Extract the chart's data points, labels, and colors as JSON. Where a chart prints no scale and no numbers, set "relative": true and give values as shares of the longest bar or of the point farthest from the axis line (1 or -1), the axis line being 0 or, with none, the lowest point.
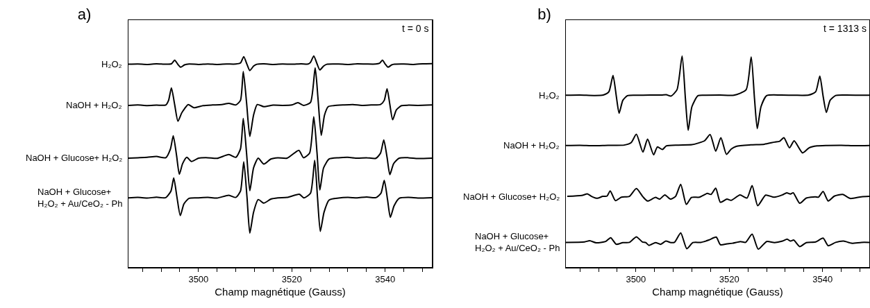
{
  "chart_data": [
    {
      "type": "line",
      "title": "a)",
      "xlabel": "Champ magnétique (Gauss)",
      "annotations": [
        "t = 0 s"
      ],
      "relative": true,
      "xlim": [
        3485,
        3550
      ],
      "xticks": [
        {
          "value": 3488,
          "label": null
        },
        {
          "value": 3492,
          "label": null
        },
        {
          "value": 3496,
          "label": null
        },
        3500,
        {
          "value": 3504,
          "label": null
        },
        {
          "value": 3508,
          "label": null
        },
        {
          "value": 3512,
          "label": null
        },
        {
          "value": 3516,
          "label": null
        },
        3520,
        {
          "value": 3524,
          "label": null
        },
        {
          "value": 3528,
          "label": null
        },
        {
          "value": 3532,
          "label": null
        },
        {
          "value": 3536,
          "label": null
        },
        3540,
        {
          "value": 3544,
          "label": null
        },
        {
          "value": 3548,
          "label": null
        }
      ],
      "marker": "none",
      "line_style": "solid",
      "grid": false,
      "legend": false,
      "series": [
        {
          "name": "H₂O₂",
          "color": "#000000",
          "x": [
            3485,
            3487,
            3489,
            3491,
            3493,
            3494.2,
            3494.9,
            3495.6,
            3496.2,
            3497,
            3498,
            3500,
            3502,
            3504,
            3506,
            3508,
            3509,
            3509.7,
            3510.4,
            3511.0,
            3511.8,
            3512.5,
            3514,
            3516,
            3518,
            3520,
            3522,
            3523.5,
            3524,
            3524.7,
            3525.4,
            3526.0,
            3526.8,
            3527.5,
            3530,
            3532,
            3534,
            3536,
            3538,
            3538.8,
            3539.4,
            3540.0,
            3540.6,
            3541.4,
            3542,
            3544,
            3546,
            3548,
            3550
          ],
          "values": [
            0.961,
            0.962,
            0.96,
            0.963,
            0.961,
            0.963,
            0.98,
            0.96,
            0.947,
            0.958,
            0.962,
            0.96,
            0.962,
            0.96,
            0.962,
            0.962,
            0.967,
            0.997,
            0.96,
            0.931,
            0.952,
            0.961,
            0.963,
            0.96,
            0.962,
            0.961,
            0.963,
            0.962,
            0.97,
            1.0,
            0.963,
            0.934,
            0.952,
            0.961,
            0.962,
            0.96,
            0.963,
            0.962,
            0.962,
            0.966,
            0.98,
            0.962,
            0.947,
            0.958,
            0.961,
            0.962,
            0.96,
            0.963,
            0.964
          ]
        },
        {
          "name": "NaOH + H₂O₂",
          "color": "#000000",
          "x": [
            3485,
            3487,
            3489,
            3491,
            3493,
            3493.6,
            3494.2,
            3494.9,
            3495.6,
            3496.4,
            3497,
            3497.8,
            3499,
            3501,
            3503,
            3505,
            3506.5,
            3508,
            3509,
            3509.6,
            3510.3,
            3511.0,
            3511.8,
            3512.6,
            3514,
            3516,
            3518,
            3520,
            3521.3,
            3522.5,
            3524,
            3525.0,
            3525.6,
            3526.3,
            3527,
            3527.8,
            3529,
            3531,
            3533,
            3535,
            3537,
            3539,
            3539.8,
            3540.4,
            3541.0,
            3541.6,
            3542.4,
            3543.5,
            3545,
            3547,
            3550
          ],
          "values": [
            0.766,
            0.768,
            0.765,
            0.767,
            0.768,
            0.79,
            0.849,
            0.77,
            0.691,
            0.73,
            0.75,
            0.77,
            0.755,
            0.765,
            0.768,
            0.77,
            0.776,
            0.768,
            0.79,
            0.927,
            0.78,
            0.619,
            0.72,
            0.77,
            0.76,
            0.767,
            0.766,
            0.768,
            0.779,
            0.766,
            0.78,
            0.944,
            0.8,
            0.624,
            0.72,
            0.76,
            0.765,
            0.768,
            0.77,
            0.766,
            0.768,
            0.77,
            0.79,
            0.845,
            0.77,
            0.698,
            0.745,
            0.765,
            0.767,
            0.766,
            0.768
          ]
        },
        {
          "name": "NaOH + Glucose+ H₂O₂",
          "color": "#000000",
          "x": [
            3485,
            3487,
            3489,
            3491,
            3493,
            3494.0,
            3494.6,
            3495.3,
            3495.9,
            3496.6,
            3497.5,
            3498.5,
            3500,
            3502,
            3504,
            3506.5,
            3508,
            3509,
            3509.6,
            3510.3,
            3511.0,
            3511.8,
            3512.8,
            3514,
            3515.5,
            3517,
            3519,
            3521.5,
            3522.5,
            3523.8,
            3524.7,
            3525.4,
            3526.0,
            3526.8,
            3528,
            3530,
            3532,
            3534,
            3536,
            3538,
            3539.0,
            3539.7,
            3540.4,
            3541.0,
            3541.8,
            3543,
            3545,
            3547,
            3550
          ],
          "values": [
            0.516,
            0.518,
            0.52,
            0.524,
            0.518,
            0.56,
            0.622,
            0.53,
            0.44,
            0.49,
            0.52,
            0.5,
            0.516,
            0.518,
            0.515,
            0.533,
            0.52,
            0.56,
            0.704,
            0.54,
            0.362,
            0.47,
            0.516,
            0.488,
            0.512,
            0.518,
            0.516,
            0.553,
            0.518,
            0.54,
            0.712,
            0.54,
            0.365,
            0.47,
            0.512,
            0.518,
            0.52,
            0.516,
            0.518,
            0.515,
            0.54,
            0.602,
            0.52,
            0.438,
            0.49,
            0.516,
            0.518,
            0.514,
            0.516
          ]
        },
        {
          "name": "NaOH + Glucose+\nH₂O₂ + Au/CeO₂ - Ph",
          "color": "#000000",
          "x": [
            3485,
            3487,
            3489,
            3491,
            3493,
            3494.1,
            3494.7,
            3495.4,
            3496.1,
            3496.9,
            3498,
            3500,
            3502,
            3504,
            3506.5,
            3508,
            3509,
            3509.7,
            3510.4,
            3511.0,
            3511.8,
            3512.8,
            3514,
            3515.5,
            3517,
            3519,
            3521.6,
            3522.6,
            3524,
            3524.9,
            3525.5,
            3526.1,
            3526.9,
            3528,
            3530,
            3532,
            3534,
            3536,
            3538,
            3539.1,
            3539.8,
            3540.5,
            3541.1,
            3541.9,
            3543,
            3545,
            3547,
            3550
          ],
          "values": [
            0.328,
            0.33,
            0.327,
            0.331,
            0.329,
            0.36,
            0.422,
            0.33,
            0.244,
            0.3,
            0.326,
            0.328,
            0.33,
            0.327,
            0.34,
            0.33,
            0.36,
            0.499,
            0.33,
            0.161,
            0.26,
            0.32,
            0.303,
            0.322,
            0.328,
            0.33,
            0.345,
            0.328,
            0.35,
            0.506,
            0.33,
            0.169,
            0.26,
            0.318,
            0.327,
            0.33,
            0.328,
            0.332,
            0.329,
            0.35,
            0.411,
            0.32,
            0.236,
            0.29,
            0.326,
            0.33,
            0.327,
            0.329
          ]
        }
      ]
    },
    {
      "type": "line",
      "title": "b)",
      "xlabel": "Champ magnétique (Gauss)",
      "annotations": [
        "t = 1313 s"
      ],
      "relative": true,
      "xlim": [
        3485,
        3550
      ],
      "xticks": [
        {
          "value": 3488,
          "label": null
        },
        {
          "value": 3492,
          "label": null
        },
        {
          "value": 3496,
          "label": null
        },
        3500,
        {
          "value": 3504,
          "label": null
        },
        {
          "value": 3508,
          "label": null
        },
        {
          "value": 3512,
          "label": null
        },
        {
          "value": 3516,
          "label": null
        },
        3520,
        {
          "value": 3524,
          "label": null
        },
        {
          "value": 3528,
          "label": null
        },
        {
          "value": 3532,
          "label": null
        },
        {
          "value": 3536,
          "label": null
        },
        3540,
        {
          "value": 3544,
          "label": null
        },
        {
          "value": 3548,
          "label": null
        }
      ],
      "marker": "none",
      "line_style": "solid",
      "grid": false,
      "legend": false,
      "series": [
        {
          "name": "H₂O₂",
          "color": "#000000",
          "x": [
            3485,
            3488,
            3491,
            3493,
            3494.2,
            3495.1,
            3495.8,
            3496.4,
            3497.2,
            3498.2,
            3500,
            3503,
            3505.5,
            3506.5,
            3507.5,
            3508.8,
            3509.9,
            3510.6,
            3511.2,
            3512.0,
            3513.3,
            3515,
            3518,
            3521,
            3523.6,
            3524.7,
            3525.4,
            3526.0,
            3526.8,
            3528,
            3531,
            3534,
            3537,
            3538.5,
            3539.4,
            3540.1,
            3540.8,
            3541.6,
            3542.8,
            3545,
            3548,
            3550
          ],
          "values": [
            0.814,
            0.815,
            0.813,
            0.815,
            0.83,
            0.908,
            0.81,
            0.729,
            0.79,
            0.812,
            0.814,
            0.815,
            0.815,
            0.817,
            0.81,
            0.84,
            1.0,
            0.8,
            0.648,
            0.76,
            0.812,
            0.814,
            0.815,
            0.814,
            0.84,
            0.996,
            0.8,
            0.656,
            0.76,
            0.812,
            0.815,
            0.814,
            0.815,
            0.83,
            0.905,
            0.81,
            0.733,
            0.79,
            0.813,
            0.815,
            0.814,
            0.814
          ]
        },
        {
          "name": "NaOH + H₂O₂",
          "color": "#000000",
          "x": [
            3485,
            3488,
            3491,
            3494,
            3497.5,
            3499,
            3500.1,
            3501.5,
            3502.5,
            3503.8,
            3504.6,
            3505.7,
            3506.5,
            3509,
            3512,
            3513.3,
            3514.7,
            3515.9,
            3517.1,
            3518.2,
            3519.4,
            3520.4,
            3521.5,
            3524.6,
            3527.5,
            3529.7,
            3530.8,
            3531.7,
            3532.9,
            3533.9,
            3535.7,
            3537.1,
            3538.8,
            3541,
            3544,
            3547,
            3550
          ],
          "values": [
            0.576,
            0.577,
            0.575,
            0.577,
            0.578,
            0.59,
            0.629,
            0.545,
            0.606,
            0.532,
            0.569,
            0.557,
            0.574,
            0.578,
            0.58,
            0.587,
            0.598,
            0.628,
            0.549,
            0.613,
            0.534,
            0.559,
            0.572,
            0.579,
            0.582,
            0.592,
            0.596,
            0.613,
            0.565,
            0.598,
            0.541,
            0.565,
            0.574,
            0.576,
            0.577,
            0.575,
            0.576
          ]
        },
        {
          "name": "NaOH + Glucose+ H₂O₂",
          "color": "#000000",
          "x": [
            3485.3,
            3488.4,
            3489.6,
            3490.5,
            3491.7,
            3492.9,
            3493.8,
            3494.5,
            3495.6,
            3496.9,
            3498.6,
            3500.1,
            3501.5,
            3502.5,
            3504.2,
            3505.1,
            3506.2,
            3507.4,
            3508.5,
            3509.6,
            3510.8,
            3511.9,
            3513.6,
            3515.3,
            3516.1,
            3517.1,
            3518.1,
            3519.5,
            3520.4,
            3522.3,
            3523.8,
            3524.9,
            3526.1,
            3527.8,
            3529.6,
            3531.4,
            3532.3,
            3533.1,
            3533.7,
            3535.1,
            3536.5,
            3538.4,
            3539.1,
            3540.1,
            3541.2,
            3542.5,
            3544.3,
            3545.9,
            3548.3,
            3550
          ],
          "values": [
            0.335,
            0.339,
            0.347,
            0.335,
            0.326,
            0.335,
            0.336,
            0.361,
            0.315,
            0.331,
            0.335,
            0.372,
            0.333,
            0.313,
            0.33,
            0.322,
            0.342,
            0.322,
            0.335,
            0.392,
            0.297,
            0.33,
            0.331,
            0.349,
            0.344,
            0.374,
            0.307,
            0.322,
            0.316,
            0.342,
            0.327,
            0.386,
            0.291,
            0.341,
            0.331,
            0.342,
            0.352,
            0.346,
            0.352,
            0.302,
            0.327,
            0.333,
            0.331,
            0.358,
            0.313,
            0.336,
            0.344,
            0.325,
            0.333,
            0.335
          ]
        },
        {
          "name": "NaOH + Glucose+\nH₂O₂ + Au/CeO₂ - Ph",
          "color": "#000000",
          "x": [
            3485,
            3489,
            3490.1,
            3491.5,
            3493.5,
            3494.6,
            3495.8,
            3497.2,
            3498.6,
            3500.1,
            3501.4,
            3502.1,
            3502.8,
            3504.2,
            3505.3,
            3506.4,
            3507.5,
            3508.3,
            3509.6,
            3510.9,
            3512.2,
            3513.9,
            3515.6,
            3517.2,
            3518.1,
            3519.5,
            3520.7,
            3522.4,
            3523.5,
            3524.9,
            3526.2,
            3528.0,
            3529.7,
            3531.4,
            3532.4,
            3533.1,
            3533.8,
            3535.1,
            3536.5,
            3538.5,
            3540.1,
            3541.2,
            3542.8,
            3544.5,
            3546.2,
            3548.3,
            3550
          ],
          "values": [
            0.117,
            0.119,
            0.125,
            0.115,
            0.121,
            0.139,
            0.108,
            0.116,
            0.117,
            0.143,
            0.119,
            0.116,
            0.103,
            0.116,
            0.108,
            0.123,
            0.116,
            0.118,
            0.162,
            0.087,
            0.116,
            0.117,
            0.128,
            0.142,
            0.106,
            0.11,
            0.113,
            0.121,
            0.117,
            0.156,
            0.085,
            0.121,
            0.116,
            0.123,
            0.132,
            0.123,
            0.128,
            0.097,
            0.116,
            0.119,
            0.137,
            0.101,
            0.117,
            0.123,
            0.113,
            0.117,
            0.117
          ]
        }
      ]
    }
  ]
}
